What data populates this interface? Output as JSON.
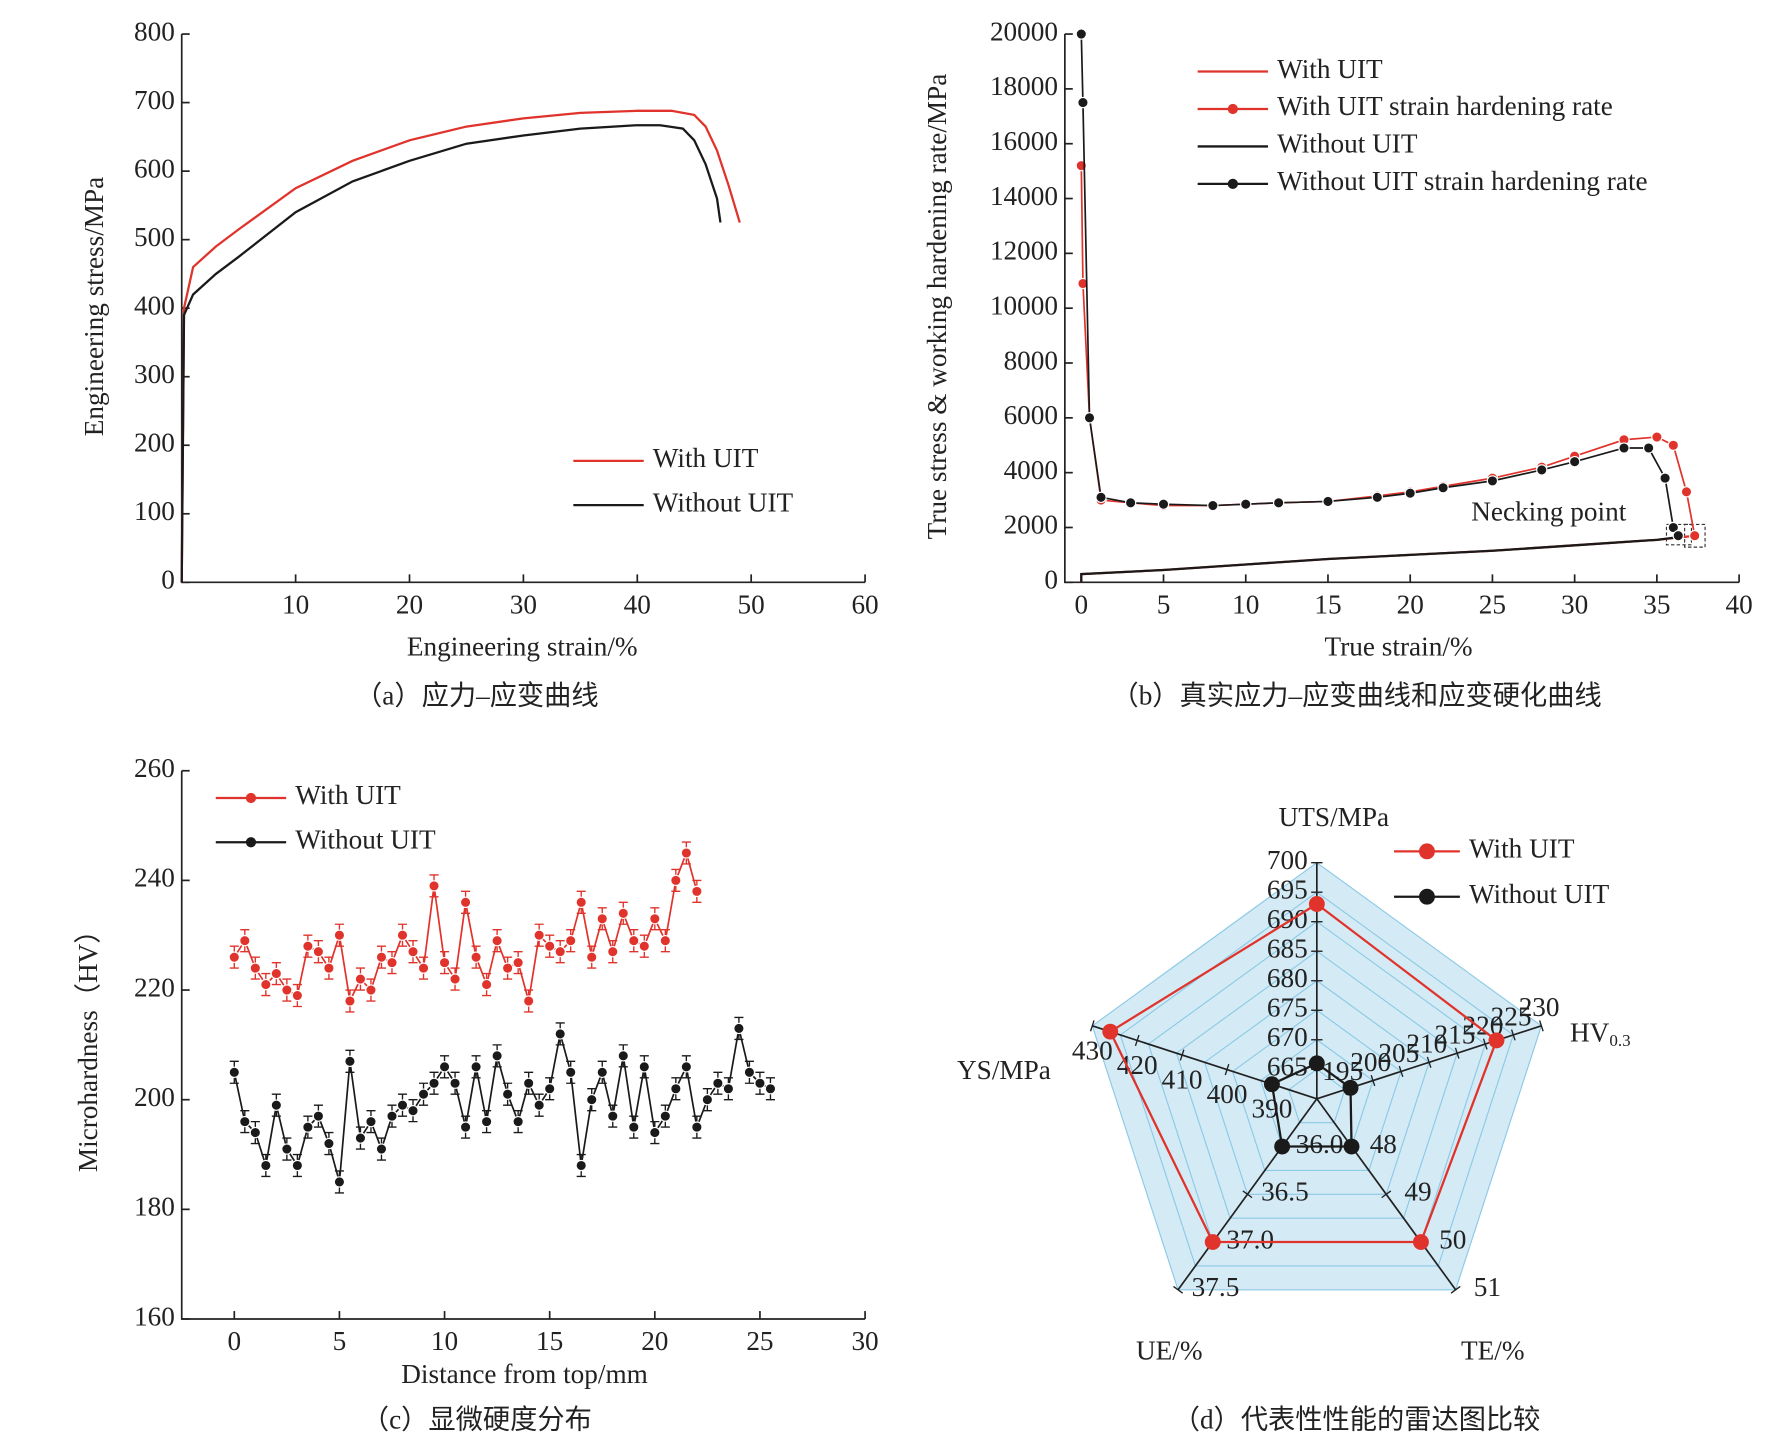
{
  "chart_data": [
    {
      "type": "line",
      "caption": "（a）应力–应变曲线",
      "xlabel": "Engineering strain/%",
      "ylabel": "Engineering stress/MPa",
      "xlim": [
        0,
        60
      ],
      "xticks": [
        10,
        20,
        30,
        40,
        50,
        60
      ],
      "ylim": [
        0,
        800
      ],
      "yticks": [
        0,
        100,
        200,
        300,
        400,
        500,
        600,
        700,
        800
      ],
      "series": [
        {
          "name": "With UIT",
          "color": "#e0332b",
          "markers": false,
          "x": [
            0,
            0.2,
            1,
            3,
            5,
            10,
            15,
            20,
            25,
            30,
            35,
            40,
            43,
            45,
            46,
            47,
            48,
            49
          ],
          "values": [
            0,
            400,
            460,
            490,
            515,
            575,
            615,
            645,
            665,
            677,
            685,
            688,
            688,
            682,
            665,
            630,
            580,
            525
          ]
        },
        {
          "name": "Without UIT",
          "color": "#1a1a1a",
          "markers": false,
          "x": [
            0,
            0.2,
            1,
            3,
            5,
            10,
            15,
            20,
            25,
            30,
            35,
            40,
            42,
            44,
            45,
            46,
            47,
            47.3
          ],
          "values": [
            0,
            390,
            420,
            450,
            475,
            540,
            585,
            615,
            640,
            652,
            662,
            667,
            667,
            662,
            645,
            610,
            560,
            525
          ]
        }
      ]
    },
    {
      "type": "line",
      "caption": "（b）真实应力–应变曲线和应变硬化曲线",
      "xlabel": "True strain/%",
      "ylabel": "True stress & working hardening rate/MPa",
      "annotation": "Necking point",
      "xlim": [
        -1,
        40
      ],
      "xticks": [
        0,
        5,
        10,
        15,
        20,
        25,
        30,
        35,
        40
      ],
      "ylim": [
        0,
        20000
      ],
      "yticks": [
        0,
        2000,
        4000,
        6000,
        8000,
        10000,
        12000,
        14000,
        16000,
        18000,
        20000
      ],
      "series": [
        {
          "name": "With UIT",
          "color": "#e0332b",
          "markers": false,
          "x": [
            0,
            0,
            5,
            10,
            15,
            20,
            25,
            30,
            35,
            37.3
          ],
          "values": [
            0,
            300,
            450,
            650,
            850,
            1000,
            1150,
            1350,
            1550,
            1700
          ]
        },
        {
          "name": "With UIT strain hardening rate",
          "color": "#e0332b",
          "markers": true,
          "x": [
            0,
            0.1,
            0.5,
            1.2,
            3,
            5,
            8,
            10,
            12,
            15,
            18,
            20,
            22,
            25,
            28,
            30,
            33,
            35,
            36,
            36.8,
            37.3
          ],
          "values": [
            15200,
            10900,
            6000,
            3000,
            2900,
            2800,
            2800,
            2850,
            2900,
            2950,
            3150,
            3300,
            3500,
            3800,
            4200,
            4600,
            5200,
            5300,
            5000,
            3300,
            1700
          ]
        },
        {
          "name": "Without UIT",
          "color": "#1a1a1a",
          "markers": false,
          "x": [
            0,
            0,
            5,
            10,
            15,
            20,
            25,
            30,
            35,
            36.3
          ],
          "values": [
            0,
            300,
            450,
            650,
            850,
            1000,
            1150,
            1350,
            1550,
            1650
          ]
        },
        {
          "name": "Without UIT strain hardening rate",
          "color": "#1a1a1a",
          "markers": true,
          "x": [
            0,
            0.1,
            0.5,
            1.2,
            3,
            5,
            8,
            10,
            12,
            15,
            18,
            20,
            22,
            25,
            28,
            30,
            33,
            34.5,
            35.5,
            36,
            36.3
          ],
          "values": [
            20000,
            17500,
            6000,
            3100,
            2900,
            2850,
            2800,
            2850,
            2900,
            2950,
            3100,
            3250,
            3450,
            3700,
            4100,
            4400,
            4900,
            4900,
            3800,
            2000,
            1700
          ]
        }
      ]
    },
    {
      "type": "line",
      "caption": "（c）显微硬度分布",
      "xlabel": "Distance from top/mm",
      "ylabel": "Microhardness（HV）",
      "xlim": [
        -2.5,
        30
      ],
      "xticks": [
        0,
        5,
        10,
        15,
        20,
        25,
        30
      ],
      "ylim": [
        160,
        260
      ],
      "yticks": [
        160,
        180,
        200,
        220,
        240,
        260
      ],
      "series": [
        {
          "name": "With UIT",
          "color": "#e0332b",
          "markers": true,
          "error": 2,
          "x": [
            0,
            0.5,
            1,
            1.5,
            2,
            2.5,
            3,
            3.5,
            4,
            4.5,
            5,
            5.5,
            6,
            6.5,
            7,
            7.5,
            8,
            8.5,
            9,
            9.5,
            10,
            10.5,
            11,
            11.5,
            12,
            12.5,
            13,
            13.5,
            14,
            14.5,
            15,
            15.5,
            16,
            16.5,
            17,
            17.5,
            18,
            18.5,
            19,
            19.5,
            20,
            20.5,
            21,
            21.5,
            22
          ],
          "values": [
            226,
            229,
            224,
            221,
            223,
            220,
            219,
            228,
            227,
            224,
            230,
            218,
            222,
            220,
            226,
            225,
            230,
            227,
            224,
            239,
            225,
            222,
            236,
            226,
            221,
            229,
            224,
            225,
            218,
            230,
            228,
            227,
            229,
            236,
            226,
            233,
            227,
            234,
            229,
            228,
            233,
            229,
            240,
            245,
            238
          ]
        },
        {
          "name": "Without UIT",
          "color": "#1a1a1a",
          "markers": true,
          "error": 2,
          "x": [
            0,
            0.5,
            1,
            1.5,
            2,
            2.5,
            3,
            3.5,
            4,
            4.5,
            5,
            5.5,
            6,
            6.5,
            7,
            7.5,
            8,
            8.5,
            9,
            9.5,
            10,
            10.5,
            11,
            11.5,
            12,
            12.5,
            13,
            13.5,
            14,
            14.5,
            15,
            15.5,
            16,
            16.5,
            17,
            17.5,
            18,
            18.5,
            19,
            19.5,
            20,
            20.5,
            21,
            21.5,
            22,
            22.5,
            23,
            23.5,
            24,
            24.5,
            25,
            25.5
          ],
          "values": [
            205,
            196,
            194,
            188,
            199,
            191,
            188,
            195,
            197,
            192,
            185,
            207,
            193,
            196,
            191,
            197,
            199,
            198,
            201,
            203,
            206,
            203,
            195,
            206,
            196,
            208,
            201,
            196,
            203,
            199,
            202,
            212,
            205,
            188,
            200,
            205,
            197,
            208,
            195,
            206,
            194,
            197,
            202,
            206,
            195,
            200,
            203,
            202,
            213,
            205,
            203,
            202
          ]
        }
      ]
    },
    {
      "type": "radar",
      "caption": "（d）代表性性能的雷达图比较",
      "axes": [
        {
          "name": "UTS/MPa",
          "lim": [
            660,
            700
          ],
          "ticks": [
            665,
            670,
            675,
            680,
            685,
            690,
            695,
            700
          ]
        },
        {
          "name": "HV",
          "subscript": "0.3",
          "lim": [
            190,
            230
          ],
          "ticks": [
            195,
            200,
            205,
            210,
            215,
            220,
            225,
            230
          ]
        },
        {
          "name": "TE/%",
          "lim": [
            47,
            51
          ],
          "ticks": [
            48,
            49,
            50,
            51
          ]
        },
        {
          "name": "UE/%",
          "lim": [
            35.5,
            37.5
          ],
          "ticks": [
            {
              "value": 36,
              "label": "36.0"
            },
            36.5,
            {
              "value": 37,
              "label": "37.0"
            },
            37.5
          ]
        },
        {
          "name": "YS/MPa",
          "lim": [
            380,
            430
          ],
          "ticks": [
            390,
            400,
            410,
            420,
            430
          ]
        }
      ],
      "series": [
        {
          "name": "With UIT",
          "color": "#e0332b",
          "values": [
            693,
            222,
            50,
            37,
            426
          ]
        },
        {
          "name": "Without UIT",
          "color": "#1a1a1a",
          "values": [
            666,
            196,
            48,
            36,
            390
          ]
        }
      ]
    }
  ]
}
